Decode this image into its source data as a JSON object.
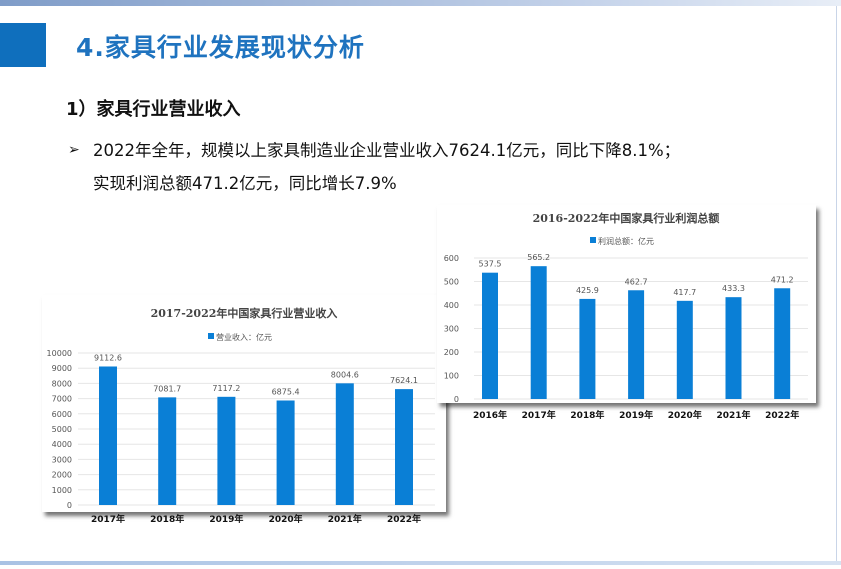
{
  "slide": {
    "title": "4.家具行业发展现状分析",
    "subtitle": "1）家具行业营业收入",
    "bullet_icon": "arrow-right-icon",
    "bullet_lines": [
      "2022年全年，规模以上家具制造业企业营业收入7624.1亿元，同比下降8.1%；",
      "实现利润总额471.2亿元，同比增长7.9%"
    ],
    "accent_color": "#0f6fbd"
  },
  "chart_data": [
    {
      "type": "bar",
      "title": "2017-2022年中国家具行业营业收入",
      "categories": [
        "2017年",
        "2018年",
        "2019年",
        "2020年",
        "2021年",
        "2022年"
      ],
      "series": [
        {
          "name": "营业收入：亿元",
          "values": [
            9112.6,
            7081.7,
            7117.2,
            6875.4,
            8004.6,
            7624.1
          ]
        }
      ],
      "data_labels": [
        "9112.6",
        "7081.7",
        "7117.2",
        "6875.4",
        "8004.6",
        "7624.1"
      ],
      "yticks": [
        "0",
        "1000",
        "2000",
        "3000",
        "4000",
        "5000",
        "6000",
        "7000",
        "8000",
        "9000",
        "10000"
      ],
      "ylim": [
        0,
        10000
      ],
      "grid": true,
      "legend": "top",
      "color": "#0a7fd6"
    },
    {
      "type": "bar",
      "title": "2016-2022年中国家具行业利润总额",
      "categories": [
        "2016年",
        "2017年",
        "2018年",
        "2019年",
        "2020年",
        "2021年",
        "2022年"
      ],
      "series": [
        {
          "name": "利润总额：亿元",
          "values": [
            537.5,
            565.2,
            425.9,
            462.7,
            417.7,
            433.3,
            471.2
          ]
        }
      ],
      "data_labels": [
        "537.5",
        "565.2",
        "425.9",
        "462.7",
        "417.7",
        "433.3",
        "471.2"
      ],
      "yticks": [
        "0",
        "100",
        "200",
        "300",
        "400",
        "500",
        "600"
      ],
      "ylim": [
        0,
        600
      ],
      "grid": true,
      "legend": "top",
      "color": "#0a7fd6"
    }
  ]
}
